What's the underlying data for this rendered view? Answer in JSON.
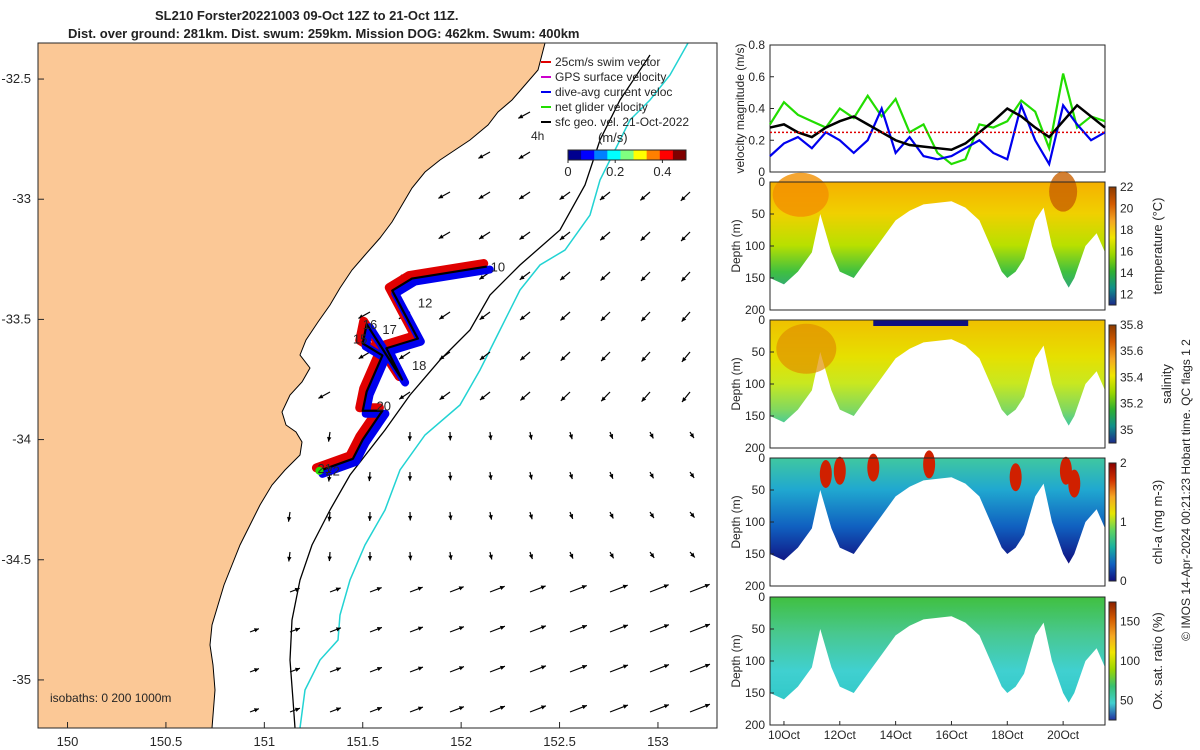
{
  "header": {
    "title_line1": "SL210 Forster20221003 09-Oct 12Z to 21-Oct 11Z.",
    "title_line2": "Dist. over ground: 281km. Dist. swum: 259km. Mission DOG: 462km. Swum: 400km"
  },
  "map": {
    "legend": [
      "25cm/s swim vector",
      "GPS surface velocity",
      "dive-avg current veloc",
      "net glider velocity",
      "sfc geo. vel. 21-Oct-2022"
    ],
    "legend_colors": [
      "#e00000",
      "#cc00cc",
      "#0000ee",
      "#22dd00",
      "#000000"
    ],
    "interval_label": "4h",
    "colorbar_unit": "(m/s)",
    "colorbar_ticks": [
      "0",
      "0.2",
      "0.4"
    ],
    "x_ticks": [
      "150",
      "150.5",
      "151",
      "151.5",
      "152",
      "152.5",
      "153"
    ],
    "y_ticks": [
      "-32.5",
      "-33",
      "-33.5",
      "-34",
      "-34.5",
      "-35"
    ],
    "isobaths_label": "isobaths: 0   200  1000m",
    "day_labels": [
      "10",
      "12",
      "15",
      "16",
      "17",
      "18",
      "20",
      "21",
      "22"
    ],
    "land_color": "#fbc896"
  },
  "panels": {
    "velocity": {
      "ylabel": "velocity magnitude (m/s)",
      "y_ticks": [
        "0",
        "0.2",
        "0.4",
        "0.6",
        "0.8"
      ]
    },
    "temperature": {
      "ylabel": "Depth (m)",
      "cbar_label": "temperature (°C)",
      "cbar_ticks": [
        "22",
        "20",
        "18",
        "16",
        "14",
        "12"
      ]
    },
    "salinity": {
      "ylabel": "Depth (m)",
      "cbar_label": "salinity",
      "cbar_ticks": [
        "35.8",
        "35.6",
        "35.4",
        "35.2",
        "35"
      ]
    },
    "chla": {
      "ylabel": "Depth (m)",
      "cbar_label": "chl-a (mg m-3)",
      "cbar_ticks": [
        "2",
        "1",
        "0"
      ]
    },
    "oxygen": {
      "ylabel": "Depth (m)",
      "cbar_label": "Ox. sat. ratio (%)",
      "cbar_ticks": [
        "150",
        "100",
        "50"
      ]
    },
    "depth_ticks": [
      "0",
      "50",
      "100",
      "150",
      "200"
    ],
    "x_ticks": [
      "10Oct",
      "12Oct",
      "14Oct",
      "16Oct",
      "18Oct",
      "20Oct"
    ]
  },
  "footer": {
    "credit": "© IMOS 14-Apr-2024 00:21:23 Hobart time. QC flags 1  2"
  },
  "chart_data": [
    {
      "type": "scatter",
      "title": "SL210 Forster20221003 09-Oct 12Z to 21-Oct 11Z.",
      "xlim": [
        149.85,
        153.3
      ],
      "ylim": [
        -35.2,
        -32.35
      ],
      "glider_track": {
        "x": [
          152.13,
          151.75,
          151.65,
          151.78,
          151.62,
          151.7,
          151.52,
          151.5,
          151.6,
          151.52,
          151.5,
          151.6,
          151.5,
          151.45,
          151.28
        ],
        "y": [
          -33.28,
          -33.33,
          -33.38,
          -33.58,
          -33.62,
          -33.75,
          -33.52,
          -33.6,
          -33.65,
          -33.8,
          -33.88,
          -33.88,
          -34.0,
          -34.08,
          -34.13
        ]
      },
      "day_markers": [
        {
          "label": "10",
          "x": 152.15,
          "y": -33.3
        },
        {
          "label": "12",
          "x": 151.78,
          "y": -33.45
        },
        {
          "label": "15",
          "x": 151.45,
          "y": -33.6
        },
        {
          "label": "16",
          "x": 151.5,
          "y": -33.54
        },
        {
          "label": "17",
          "x": 151.6,
          "y": -33.56
        },
        {
          "label": "18",
          "x": 151.75,
          "y": -33.71
        },
        {
          "label": "20",
          "x": 151.57,
          "y": -33.88
        },
        {
          "label": "21",
          "x": 151.27,
          "y": -34.14
        },
        {
          "label": "22",
          "x": 151.31,
          "y": -34.15
        }
      ],
      "colorbar": {
        "label": "(m/s)",
        "range": [
          0,
          0.5
        ]
      }
    },
    {
      "type": "line",
      "xlabel": "",
      "ylabel": "velocity magnitude (m/s)",
      "ylim": [
        0,
        0.8
      ],
      "x": [
        9.5,
        10,
        10.5,
        11,
        11.5,
        12,
        12.5,
        13,
        13.5,
        14,
        14.5,
        15,
        15.5,
        16,
        16.5,
        17,
        17.5,
        18,
        18.5,
        19,
        19.5,
        20,
        20.5,
        21,
        21.5
      ],
      "series": [
        {
          "name": "net glider velocity",
          "color": "#22dd00",
          "values": [
            0.3,
            0.44,
            0.36,
            0.32,
            0.28,
            0.4,
            0.34,
            0.48,
            0.35,
            0.46,
            0.25,
            0.3,
            0.12,
            0.05,
            0.08,
            0.3,
            0.28,
            0.32,
            0.45,
            0.38,
            0.15,
            0.62,
            0.28,
            0.35,
            0.32
          ]
        },
        {
          "name": "dive-avg current veloc",
          "color": "#0000ee",
          "values": [
            0.1,
            0.18,
            0.22,
            0.15,
            0.25,
            0.2,
            0.12,
            0.2,
            0.4,
            0.12,
            0.22,
            0.1,
            0.08,
            0.1,
            0.15,
            0.2,
            0.12,
            0.08,
            0.42,
            0.2,
            0.05,
            0.42,
            0.3,
            0.2,
            0.25
          ]
        },
        {
          "name": "sfc geo. vel. 21-Oct-2022",
          "color": "#000000",
          "values": [
            0.28,
            0.3,
            0.25,
            0.22,
            0.28,
            0.32,
            0.35,
            0.3,
            0.25,
            0.2,
            0.17,
            0.16,
            0.15,
            0.14,
            0.18,
            0.25,
            0.32,
            0.4,
            0.35,
            0.28,
            0.22,
            0.32,
            0.42,
            0.35,
            0.28
          ]
        },
        {
          "name": "25cm/s swim vector",
          "color": "#e00000",
          "values": [
            0.25,
            0.25,
            0.25,
            0.25,
            0.25,
            0.25,
            0.25,
            0.25,
            0.25,
            0.25,
            0.25,
            0.25,
            0.25,
            0.25,
            0.25,
            0.25,
            0.25,
            0.25,
            0.25,
            0.25,
            0.25,
            0.25,
            0.25,
            0.25,
            0.25
          ]
        }
      ]
    },
    {
      "type": "heatmap",
      "ylabel": "Depth (m)",
      "ylim": [
        200,
        0
      ],
      "x_range": [
        9.5,
        21.5
      ],
      "bottom_depth_profile": {
        "x": [
          9.5,
          10,
          10.5,
          11,
          11.3,
          11.7,
          12,
          12.5,
          13,
          13.5,
          14,
          14.5,
          15,
          16,
          16.5,
          17,
          17.5,
          17.8,
          18,
          18.3,
          18.6,
          19,
          19.3,
          19.6,
          20,
          20.2,
          20.4,
          20.8,
          21.2,
          21.5
        ],
        "y": [
          150,
          160,
          140,
          110,
          50,
          110,
          140,
          150,
          120,
          90,
          60,
          45,
          35,
          30,
          40,
          60,
          110,
          140,
          150,
          140,
          120,
          60,
          40,
          100,
          150,
          165,
          150,
          100,
          80,
          110
        ]
      },
      "variables": [
        {
          "name": "temperature (°C)",
          "range": [
            11,
            22
          ]
        },
        {
          "name": "salinity",
          "range": [
            34.9,
            35.8
          ]
        },
        {
          "name": "chl-a (mg m-3)",
          "range": [
            0,
            2
          ]
        },
        {
          "name": "Ox. sat. ratio (%)",
          "range": [
            25,
            175
          ]
        }
      ]
    }
  ]
}
